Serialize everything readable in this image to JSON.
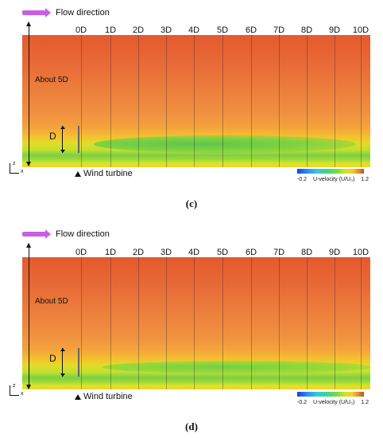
{
  "panels": [
    {
      "id": "c",
      "flow_label": "Flow direction",
      "ticks": [
        "0D",
        "1D",
        "2D",
        "3D",
        "4D",
        "5D",
        "6D",
        "7D",
        "8D",
        "9D",
        "10D"
      ],
      "height_label": "About 5D",
      "d_label": "D",
      "turbine_label": "Wind turbine",
      "axis_z": "z",
      "axis_x": "x",
      "legend_min": "-0.2",
      "legend_title": "U-velocity (U/U₀)",
      "legend_max": "1.2",
      "caption": "(c)",
      "ghost_text": "About 5D"
    },
    {
      "id": "d",
      "flow_label": "Flow direction",
      "ticks": [
        "0D",
        "1D",
        "2D",
        "3D",
        "4D",
        "5D",
        "6D",
        "7D",
        "8D",
        "9D",
        "10D"
      ],
      "height_label": "About 5D",
      "d_label": "D",
      "turbine_label": "Wind turbine",
      "axis_z": "z",
      "axis_x": "x",
      "legend_min": "-0.2",
      "legend_title": "U-velocity (U/U₀)",
      "legend_max": "1.2",
      "caption": "(d)"
    }
  ],
  "colors": {
    "flow_arrow": "#c85ee6",
    "field_top": "#e55a2f",
    "wake": "#7fcf45"
  }
}
